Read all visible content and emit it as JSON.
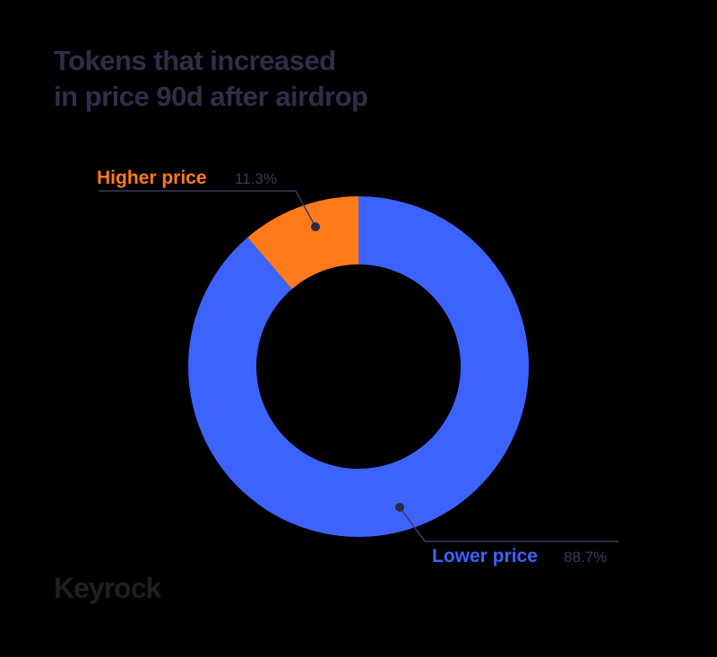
{
  "title_lines": [
    "Tokens that increased",
    "in price 90d after airdrop"
  ],
  "logo_text": "Keyrock",
  "colors": {
    "background": "#000000",
    "title": "#2e2e4a",
    "higher": "#ff7a1a",
    "lower": "#3d63ff",
    "percent_text": "#3a3a5c",
    "leader_line": "#3a3a5c",
    "logo": "#1f1f22"
  },
  "chart_data": {
    "type": "pie",
    "style": "donut",
    "title": "Tokens that increased in price 90d after airdrop",
    "slices": [
      {
        "label": "Higher price",
        "value": 11.3,
        "value_label": "11.3%",
        "color": "#ff7a1a"
      },
      {
        "label": "Lower price",
        "value": 88.7,
        "value_label": "88.7%",
        "color": "#3d63ff"
      }
    ],
    "legend": "none"
  }
}
